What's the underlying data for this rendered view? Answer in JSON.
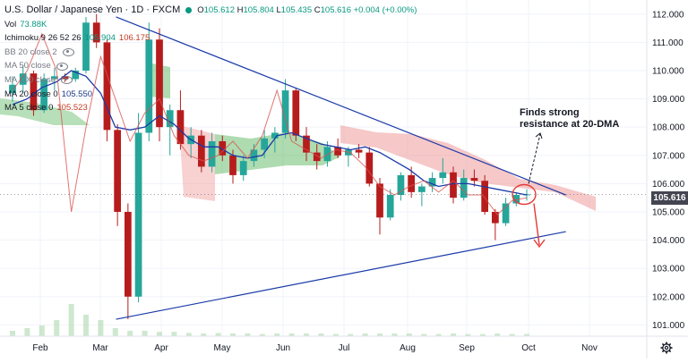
{
  "header": {
    "symbol_title": "U.S. Dollar / Japanese Yen · 1D · FXCM",
    "ohlc": {
      "o_label": "O",
      "o": "105.612",
      "h_label": "H",
      "h": "105.804",
      "l_label": "L",
      "l": "105.435",
      "c_label": "C",
      "c": "105.616",
      "change": "+0.004 (+0.00%)"
    }
  },
  "indicators": {
    "vol": {
      "label": "Vol",
      "value": "73.88K"
    },
    "ichimoku": {
      "label": "Ichimoku 9 26 52 26",
      "value1": "105.904",
      "value2": "106.175"
    },
    "bb": {
      "label": "BB 20 close 2"
    },
    "ma50": {
      "label": "MA 50 close"
    },
    "ma100": {
      "label": "MA 100 close"
    },
    "ma20": {
      "label": "MA 20 close 0",
      "value": "105.550"
    },
    "ma5": {
      "label": "MA 5 close 0",
      "value": "105.523"
    }
  },
  "price_badge": "105.616",
  "annotation": {
    "line1": "Finds strong",
    "line2": "resistance at 20-DMA"
  },
  "colors": {
    "up": "#26a69a",
    "down": "#b71c1c",
    "trend": "#1a3aa8",
    "ma20": "#1a3aa8",
    "ma5": "#d9534f",
    "cloud_bull": "#4caf50",
    "cloud_bear": "#ef9a9a",
    "volume": "#a5d6a7"
  },
  "chart_data": {
    "type": "candlestick",
    "y_axis": {
      "ticks": [
        101.0,
        102.0,
        103.0,
        104.0,
        105.0,
        106.0,
        107.0,
        108.0,
        109.0,
        110.0,
        111.0,
        112.0
      ],
      "tick_labels": [
        "101.000",
        "102.000",
        "103.000",
        "104.000",
        "105.000",
        "106.000",
        "107.000",
        "108.000",
        "109.000",
        "110.000",
        "111.000",
        "112.000"
      ],
      "ylim": [
        100.6,
        112.5
      ]
    },
    "x_axis": {
      "labels": [
        "Feb",
        "Mar",
        "Apr",
        "May",
        "Jun",
        "Jul",
        "Aug",
        "Sep",
        "Oct",
        "Nov"
      ]
    },
    "last_price": 105.616,
    "trendlines": [
      {
        "name": "resistance",
        "from": {
          "date": "2020-03-09",
          "price": 111.9
        },
        "to": {
          "date": "2020-10-20",
          "price": 105.6
        }
      },
      {
        "name": "support",
        "from": {
          "date": "2020-03-09",
          "price": 101.2
        },
        "to": {
          "date": "2020-10-20",
          "price": 104.3
        }
      }
    ],
    "series": [
      {
        "name": "MA 20",
        "values": [
          108.8,
          109.0,
          109.4,
          109.6,
          110.0,
          109.8,
          109.2,
          108.0,
          107.9,
          108.0,
          108.4,
          108.1,
          107.6,
          107.3,
          107.3,
          107.0,
          106.9,
          107.0,
          107.7,
          107.8,
          107.6,
          107.4,
          107.3,
          107.2,
          107.3,
          107.1,
          106.8,
          106.5,
          106.1,
          105.9,
          106.0,
          106.0,
          105.9,
          105.8,
          105.7,
          105.6
        ]
      },
      {
        "name": "MA 5",
        "values": [
          109.3,
          110.0,
          111.3,
          110.0,
          105.0,
          108.0,
          110.5,
          109.0,
          107.5,
          108.5,
          109.0,
          107.7,
          107.0,
          106.8,
          107.0,
          107.5,
          106.9,
          107.7,
          109.3,
          107.5,
          107.2,
          106.9,
          107.2,
          107.1,
          106.6,
          105.9,
          105.6,
          105.9,
          106.1,
          105.7,
          106.1,
          105.6,
          105.6,
          104.9,
          105.4,
          105.5
        ]
      },
      {
        "name": "Volume",
        "values": [
          0.1,
          0.15,
          0.2,
          0.3,
          0.6,
          0.4,
          0.3,
          0.15,
          0.1,
          0.1,
          0.08,
          0.08,
          0.06,
          0.05,
          0.06,
          0.05,
          0.05,
          0.04,
          0.05,
          0.05,
          0.05,
          0.05,
          0.04,
          0.04,
          0.05,
          0.05,
          0.05,
          0.05,
          0.04,
          0.04,
          0.05,
          0.04,
          0.04,
          0.05,
          0.04,
          0.04
        ]
      }
    ],
    "candles": [
      {
        "o": 109.2,
        "h": 109.8,
        "l": 108.9,
        "c": 109.5
      },
      {
        "o": 109.5,
        "h": 110.2,
        "l": 109.2,
        "c": 109.9
      },
      {
        "o": 109.9,
        "h": 110.0,
        "l": 108.4,
        "c": 108.6
      },
      {
        "o": 108.6,
        "h": 109.9,
        "l": 108.5,
        "c": 109.7
      },
      {
        "o": 109.7,
        "h": 110.1,
        "l": 109.3,
        "c": 109.8
      },
      {
        "o": 109.8,
        "h": 109.9,
        "l": 109.6,
        "c": 109.7
      },
      {
        "o": 109.7,
        "h": 110.1,
        "l": 109.6,
        "c": 110.0
      },
      {
        "o": 110.0,
        "h": 111.9,
        "l": 109.9,
        "c": 111.7
      },
      {
        "o": 111.7,
        "h": 112.0,
        "l": 110.8,
        "c": 111.0
      },
      {
        "o": 111.0,
        "h": 111.1,
        "l": 107.5,
        "c": 107.9
      },
      {
        "o": 107.9,
        "h": 108.1,
        "l": 104.5,
        "c": 105.0
      },
      {
        "o": 105.0,
        "h": 105.3,
        "l": 101.2,
        "c": 102.0
      },
      {
        "o": 102.0,
        "h": 108.5,
        "l": 101.8,
        "c": 107.8
      },
      {
        "o": 107.8,
        "h": 111.7,
        "l": 107.5,
        "c": 111.1
      },
      {
        "o": 111.1,
        "h": 111.5,
        "l": 107.5,
        "c": 108.0
      },
      {
        "o": 108.0,
        "h": 108.8,
        "l": 107.0,
        "c": 108.6
      },
      {
        "o": 108.6,
        "h": 109.3,
        "l": 107.2,
        "c": 107.4
      },
      {
        "o": 107.4,
        "h": 108.0,
        "l": 106.9,
        "c": 107.7
      },
      {
        "o": 107.7,
        "h": 107.9,
        "l": 106.4,
        "c": 106.6
      },
      {
        "o": 106.6,
        "h": 107.8,
        "l": 106.4,
        "c": 107.5
      },
      {
        "o": 107.5,
        "h": 107.7,
        "l": 106.8,
        "c": 107.0
      },
      {
        "o": 107.0,
        "h": 107.2,
        "l": 106.0,
        "c": 106.3
      },
      {
        "o": 106.3,
        "h": 107.0,
        "l": 106.1,
        "c": 106.8
      },
      {
        "o": 106.8,
        "h": 107.4,
        "l": 106.6,
        "c": 107.2
      },
      {
        "o": 107.2,
        "h": 107.9,
        "l": 106.9,
        "c": 107.6
      },
      {
        "o": 107.6,
        "h": 108.0,
        "l": 107.1,
        "c": 107.8
      },
      {
        "o": 107.8,
        "h": 109.7,
        "l": 107.6,
        "c": 109.3
      },
      {
        "o": 109.3,
        "h": 109.4,
        "l": 107.5,
        "c": 107.7
      },
      {
        "o": 107.7,
        "h": 108.0,
        "l": 106.8,
        "c": 107.1
      },
      {
        "o": 107.1,
        "h": 107.4,
        "l": 106.5,
        "c": 106.8
      },
      {
        "o": 106.8,
        "h": 107.5,
        "l": 106.6,
        "c": 107.3
      },
      {
        "o": 107.3,
        "h": 107.6,
        "l": 106.9,
        "c": 107.0
      },
      {
        "o": 107.0,
        "h": 107.3,
        "l": 106.6,
        "c": 107.2
      },
      {
        "o": 107.2,
        "h": 107.4,
        "l": 106.9,
        "c": 107.1
      },
      {
        "o": 107.1,
        "h": 107.3,
        "l": 105.9,
        "c": 106.0
      },
      {
        "o": 106.0,
        "h": 106.2,
        "l": 104.2,
        "c": 104.8
      },
      {
        "o": 104.8,
        "h": 105.8,
        "l": 104.7,
        "c": 105.6
      },
      {
        "o": 105.6,
        "h": 106.4,
        "l": 105.4,
        "c": 106.3
      },
      {
        "o": 106.3,
        "h": 106.6,
        "l": 105.5,
        "c": 105.7
      },
      {
        "o": 105.7,
        "h": 106.0,
        "l": 105.2,
        "c": 105.9
      },
      {
        "o": 105.9,
        "h": 106.4,
        "l": 105.7,
        "c": 106.2
      },
      {
        "o": 106.2,
        "h": 106.9,
        "l": 106.0,
        "c": 106.4
      },
      {
        "o": 106.4,
        "h": 106.6,
        "l": 105.3,
        "c": 105.5
      },
      {
        "o": 105.5,
        "h": 106.5,
        "l": 105.4,
        "c": 106.2
      },
      {
        "o": 106.2,
        "h": 106.5,
        "l": 105.9,
        "c": 106.1
      },
      {
        "o": 106.1,
        "h": 106.3,
        "l": 104.9,
        "c": 105.0
      },
      {
        "o": 105.0,
        "h": 105.1,
        "l": 104.0,
        "c": 104.6
      },
      {
        "o": 104.6,
        "h": 105.5,
        "l": 104.5,
        "c": 105.3
      },
      {
        "o": 105.3,
        "h": 105.7,
        "l": 105.2,
        "c": 105.6
      },
      {
        "o": 105.6,
        "h": 105.8,
        "l": 105.4,
        "c": 105.62
      }
    ]
  }
}
